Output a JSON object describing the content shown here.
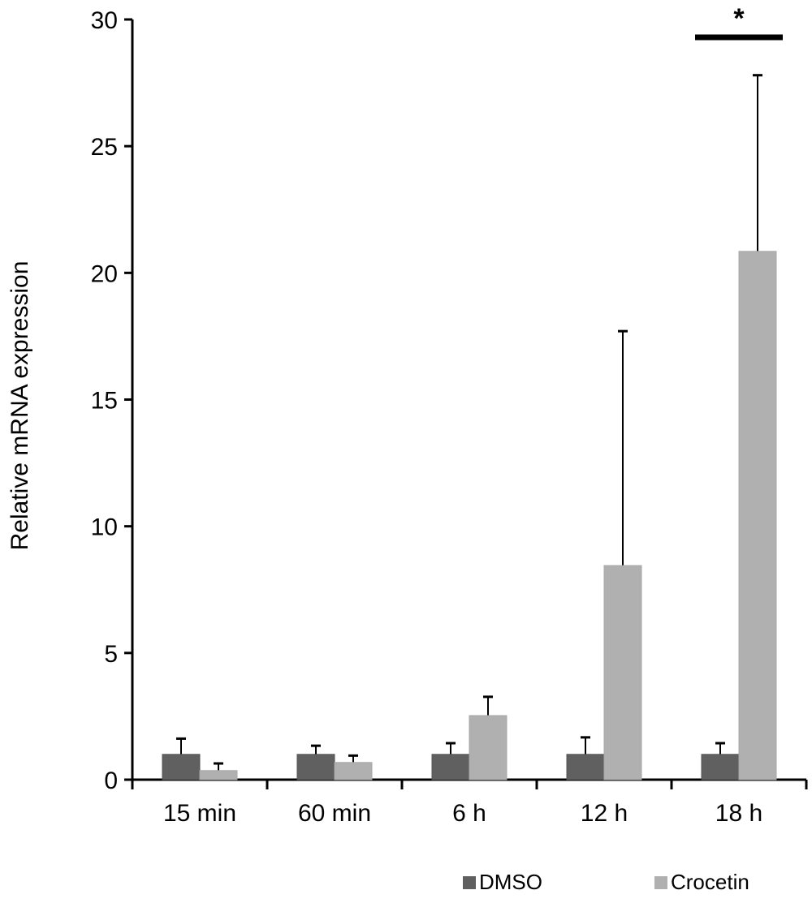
{
  "chart_data": {
    "type": "bar",
    "title": "",
    "xlabel": "",
    "ylabel": "Relative mRNA expression",
    "ylim": [
      0,
      30
    ],
    "yticks": [
      0,
      5,
      10,
      15,
      20,
      25,
      30
    ],
    "grid": false,
    "legend_position": "bottom-right",
    "categories": [
      "15 min",
      "60 min",
      "6 h",
      "12 h",
      "18 h"
    ],
    "series": [
      {
        "name": "DMSO",
        "color": "#606060",
        "values": [
          1.0,
          1.0,
          1.0,
          1.0,
          1.0
        ],
        "error_upper": [
          1.62,
          1.34,
          1.44,
          1.67,
          1.44
        ]
      },
      {
        "name": "Crocetin",
        "color": "#b0b0b0",
        "values": [
          0.36,
          0.68,
          2.53,
          8.45,
          20.85
        ],
        "error_upper": [
          0.64,
          0.95,
          3.27,
          17.7,
          27.8
        ]
      }
    ],
    "annotations": [
      {
        "text": "*",
        "category": "18 h",
        "type": "significance-bar"
      }
    ]
  },
  "legend": {
    "items": [
      {
        "label": "DMSO",
        "color": "#606060"
      },
      {
        "label": "Crocetin",
        "color": "#b0b0b0"
      }
    ]
  }
}
